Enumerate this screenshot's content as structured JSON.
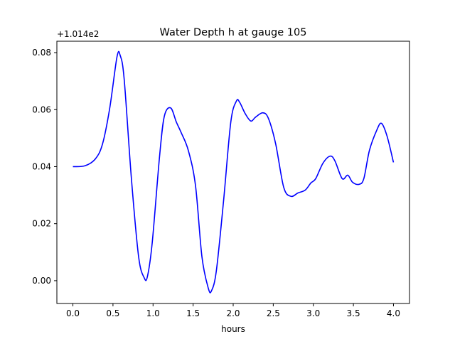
{
  "chart_data": {
    "type": "line",
    "title": "Water Depth h at gauge 105",
    "xlabel": "hours",
    "ylabel": "",
    "offset_text": "+1.014e2",
    "xlim": [
      -0.2,
      4.2
    ],
    "ylim": [
      -0.008,
      0.084
    ],
    "xticks": [
      0.0,
      0.5,
      1.0,
      1.5,
      2.0,
      2.5,
      3.0,
      3.5,
      4.0
    ],
    "xtick_labels": [
      "0.0",
      "0.5",
      "1.0",
      "1.5",
      "2.0",
      "2.5",
      "3.0",
      "3.5",
      "4.0"
    ],
    "yticks": [
      0.0,
      0.02,
      0.04,
      0.06,
      0.08
    ],
    "ytick_labels": [
      "0.00",
      "0.02",
      "0.04",
      "0.06",
      "0.08"
    ],
    "grid": false,
    "series": [
      {
        "name": "h",
        "color": "#0000ff",
        "x": [
          0.0,
          0.15,
          0.28,
          0.37,
          0.46,
          0.55,
          0.59,
          0.64,
          0.73,
          0.82,
          0.89,
          0.93,
          0.99,
          1.08,
          1.14,
          1.22,
          1.29,
          1.35,
          1.44,
          1.53,
          1.61,
          1.69,
          1.73,
          1.79,
          1.88,
          1.97,
          2.04,
          2.08,
          2.15,
          2.22,
          2.28,
          2.37,
          2.44,
          2.53,
          2.63,
          2.72,
          2.81,
          2.9,
          2.97,
          3.03,
          3.12,
          3.21,
          3.27,
          3.36,
          3.43,
          3.49,
          3.57,
          3.63,
          3.7,
          3.79,
          3.85,
          3.92,
          4.0
        ],
        "y": [
          0.04,
          0.0403,
          0.0427,
          0.048,
          0.0606,
          0.0785,
          0.079,
          0.0706,
          0.0358,
          0.0084,
          0.001,
          0.0015,
          0.0134,
          0.0432,
          0.0576,
          0.0606,
          0.0557,
          0.052,
          0.0457,
          0.0333,
          0.0084,
          -0.0027,
          -0.0035,
          0.0035,
          0.028,
          0.0556,
          0.063,
          0.0626,
          0.0586,
          0.056,
          0.0574,
          0.0589,
          0.0569,
          0.048,
          0.0328,
          0.0296,
          0.0308,
          0.0318,
          0.0343,
          0.0358,
          0.0412,
          0.0437,
          0.042,
          0.0358,
          0.037,
          0.0345,
          0.0338,
          0.0358,
          0.0457,
          0.0527,
          0.0552,
          0.0507,
          0.0415
        ]
      }
    ]
  }
}
